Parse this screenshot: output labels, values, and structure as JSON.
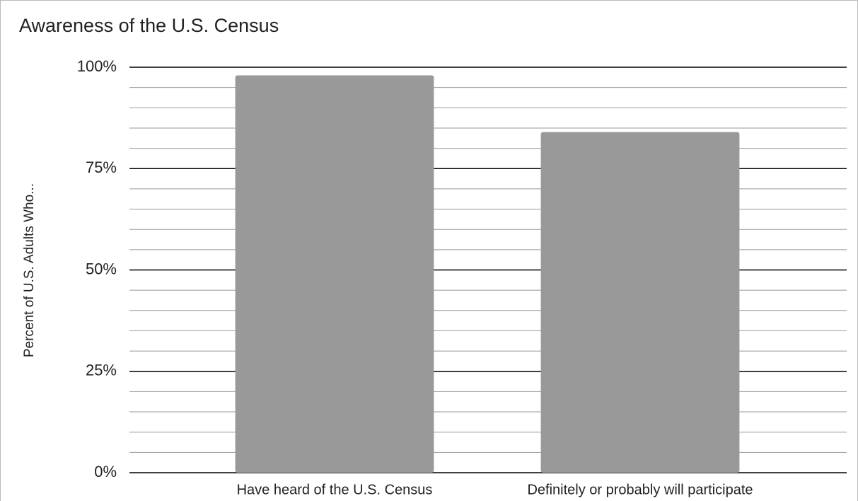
{
  "chart_data": {
    "type": "bar",
    "title": "Awareness of the U.S. Census",
    "y_label": "Percent of U.S. Adults Who...",
    "categories": [
      "Have heard of the U.S. Census",
      "Definitely or probably will participate"
    ],
    "values": [
      98,
      84
    ],
    "color": "#999999",
    "ylim": [
      0,
      100
    ],
    "yticks": [
      {
        "value": 0,
        "label": "0%"
      },
      {
        "value": 25,
        "label": "25%"
      },
      {
        "value": 50,
        "label": "50%"
      },
      {
        "value": 75,
        "label": "75%"
      },
      {
        "value": 100,
        "label": "100%"
      }
    ],
    "minor_yticks": [
      5,
      10,
      15,
      20,
      30,
      35,
      40,
      45,
      55,
      60,
      65,
      70,
      80,
      85,
      90,
      95
    ],
    "grid": true
  }
}
